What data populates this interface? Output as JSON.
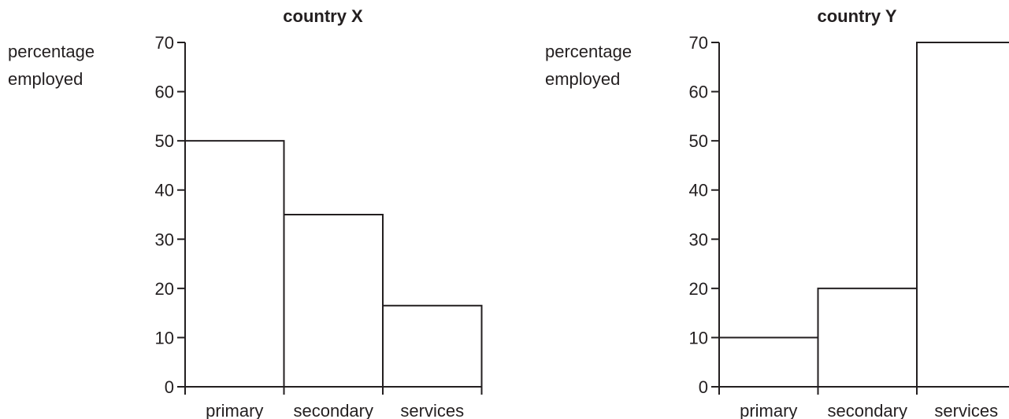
{
  "chart_data": [
    {
      "type": "bar",
      "title": "country X",
      "ylabel_lines": [
        "percentage",
        "employed"
      ],
      "xlabel": "",
      "categories": [
        "primary",
        "secondary",
        "services"
      ],
      "values": [
        50,
        35,
        16.5
      ],
      "ylim": [
        0,
        70
      ],
      "yticks": [
        0,
        10,
        20,
        30,
        40,
        50,
        60,
        70
      ],
      "grid": false,
      "bar_gap": 0,
      "bar_fill": "#ffffff",
      "line_color": "#231f20"
    },
    {
      "type": "bar",
      "title": "country Y",
      "ylabel_lines": [
        "percentage",
        "employed"
      ],
      "xlabel": "",
      "categories": [
        "primary",
        "secondary",
        "services"
      ],
      "values": [
        10,
        20,
        70
      ],
      "ylim": [
        0,
        70
      ],
      "yticks": [
        0,
        10,
        20,
        30,
        40,
        50,
        60,
        70
      ],
      "grid": false,
      "bar_gap": 0,
      "bar_fill": "#ffffff",
      "line_color": "#231f20"
    }
  ]
}
